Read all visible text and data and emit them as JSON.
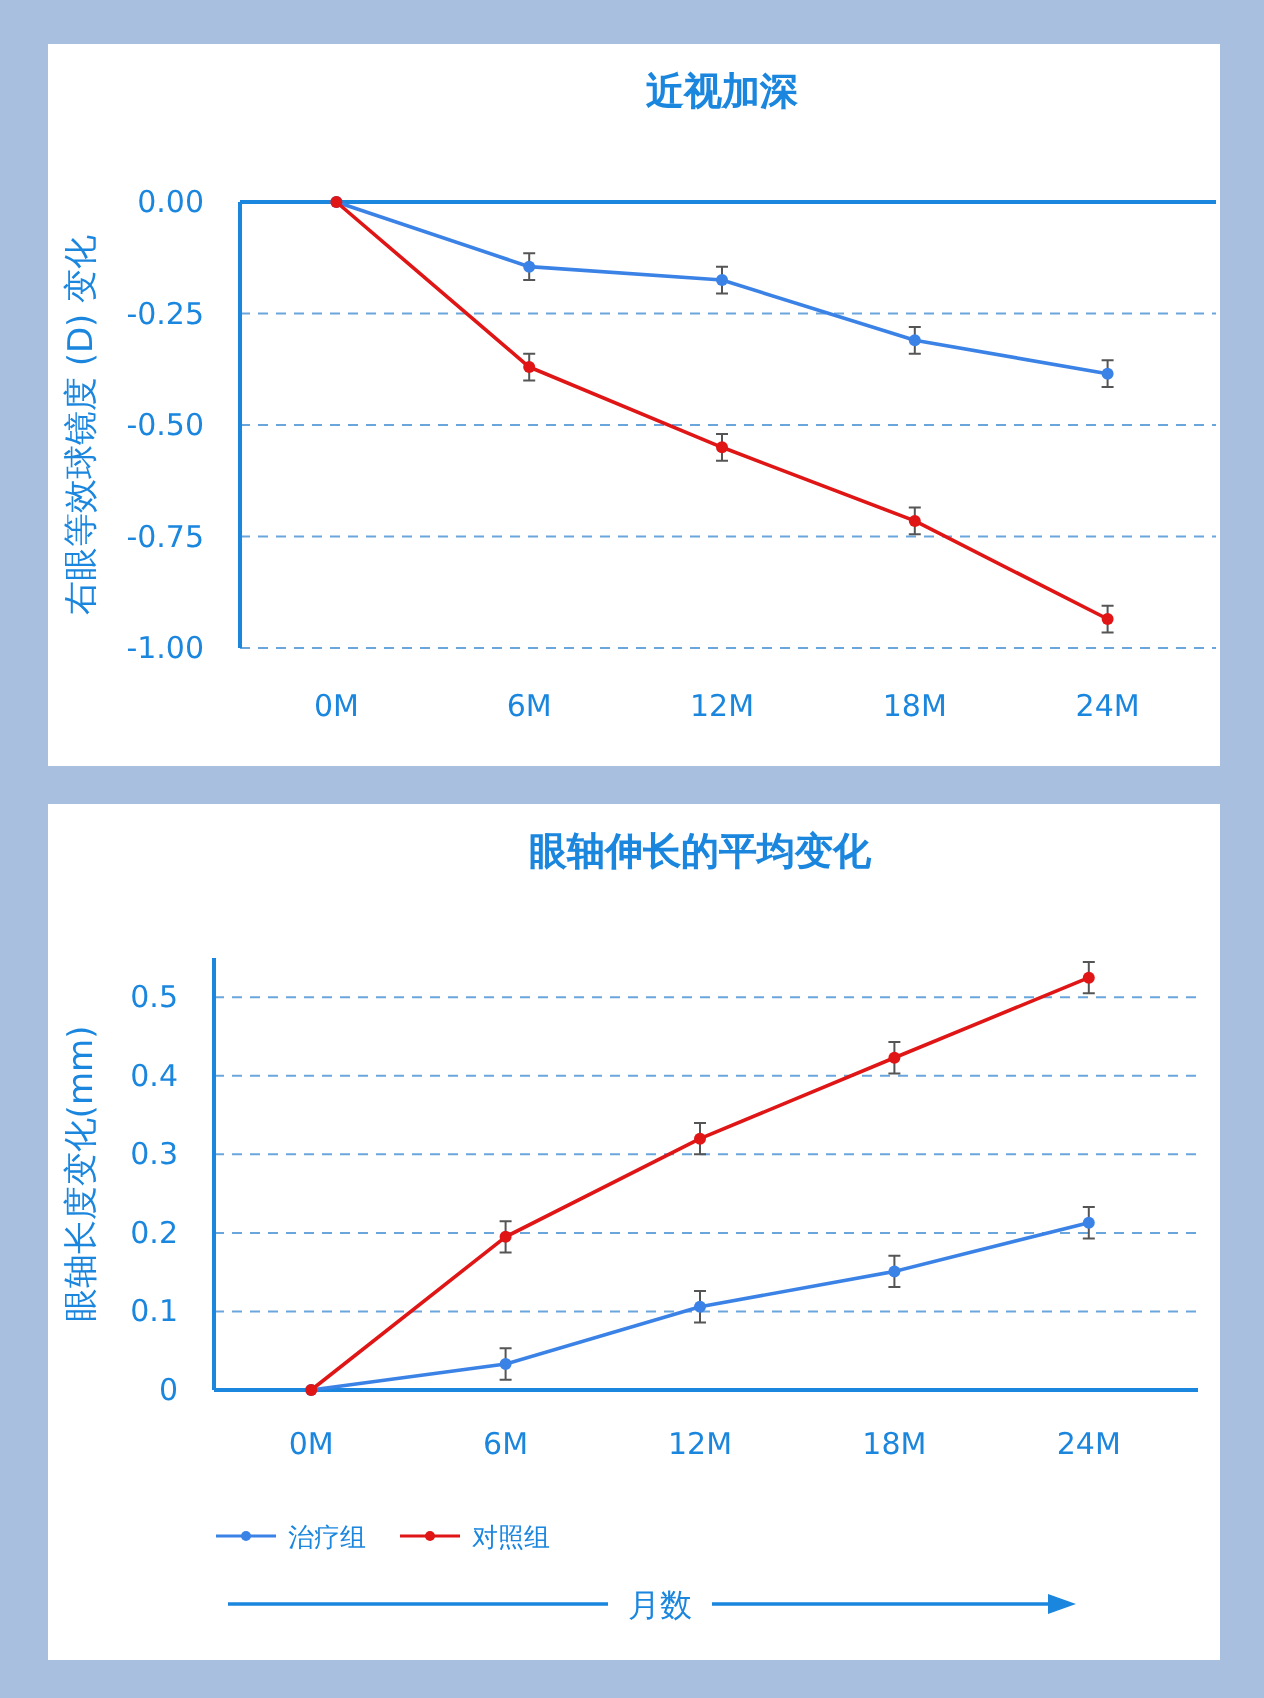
{
  "chart_data": [
    {
      "type": "line",
      "title": "近视加深",
      "ylabel": "右眼等效球镜度 (D) 变化",
      "categories": [
        "0M",
        "6M",
        "12M",
        "18M",
        "24M"
      ],
      "ylim": [
        -1,
        0
      ],
      "yticks": [
        {
          "value": 0,
          "label": "0.00"
        },
        {
          "value": -0.25,
          "label": "-0.25"
        },
        {
          "value": -0.5,
          "label": "-0.50"
        },
        {
          "value": -0.75,
          "label": "-0.75"
        },
        {
          "value": -1,
          "label": "-1.00"
        }
      ],
      "grid": "y",
      "marker": "circle",
      "line_style": "solid",
      "legend": false,
      "series": [
        {
          "color": "#3b82e6",
          "values": [
            0,
            -0.145,
            -0.175,
            -0.31,
            -0.385
          ],
          "errors": [
            null,
            0.03,
            0.03,
            0.03,
            0.03
          ]
        },
        {
          "color": "#e01515",
          "values": [
            0,
            -0.37,
            -0.55,
            -0.715,
            -0.935
          ],
          "errors": [
            null,
            0.03,
            0.03,
            0.03,
            0.03
          ]
        }
      ]
    },
    {
      "type": "line",
      "title": "眼轴伸长的平均变化",
      "ylabel": "眼轴长度变化(mm)",
      "xlabel": "月数",
      "categories": [
        "0M",
        "6M",
        "12M",
        "18M",
        "24M"
      ],
      "ylim": [
        0,
        0.55
      ],
      "yticks": [
        0,
        0.1,
        0.2,
        0.3,
        0.4,
        0.5
      ],
      "grid": "y",
      "marker": "circle",
      "line_style": "solid",
      "legend": "bottom left",
      "series": [
        {
          "name": "治疗组",
          "color": "#3b82e6",
          "values": [
            0,
            0.033,
            0.106,
            0.151,
            0.213
          ],
          "errors": [
            null,
            0.02,
            0.02,
            0.02,
            0.02
          ]
        },
        {
          "name": "对照组",
          "color": "#e01515",
          "values": [
            0,
            0.195,
            0.32,
            0.423,
            0.525
          ],
          "errors": [
            null,
            0.02,
            0.02,
            0.02,
            0.02
          ]
        }
      ]
    }
  ]
}
